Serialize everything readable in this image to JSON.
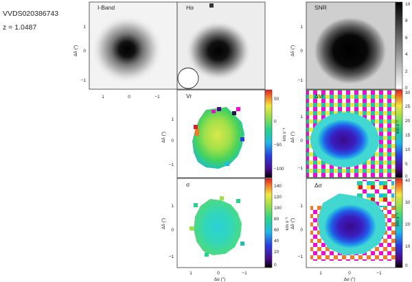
{
  "header": {
    "object_id": "VVDS020386743",
    "redshift_label": "z = 1.0487"
  },
  "panels": {
    "iband": {
      "label": "I-Band"
    },
    "halpha": {
      "label": "Hα"
    },
    "snr": {
      "label": "SNR",
      "colorbar": {
        "ticks": [
          "0",
          "2",
          "4",
          "6",
          "8",
          "10"
        ]
      }
    },
    "vr": {
      "label": "Vr",
      "colorbar": {
        "ticks": [
          "50",
          "0",
          "−50",
          "−100"
        ],
        "unit": "km s⁻¹"
      }
    },
    "dvr": {
      "label": "ΔVr",
      "colorbar": {
        "ticks": [
          "0",
          "5",
          "10",
          "15",
          "20",
          "25",
          "30"
        ],
        "unit": "km s⁻¹"
      }
    },
    "sigma": {
      "label": "σ",
      "colorbar": {
        "ticks": [
          "0",
          "20",
          "40",
          "60",
          "80",
          "100",
          "120",
          "140"
        ],
        "unit": "km s⁻¹"
      }
    },
    "dsigma": {
      "label": "Δσ",
      "colorbar": {
        "ticks": [
          "0",
          "10",
          "20",
          "30",
          "40"
        ],
        "unit": "km s⁻¹"
      }
    }
  },
  "axes": {
    "ylabel": "Δδ (″)",
    "xlabel": "Δα (″)",
    "y_ticks": [
      "1",
      "0",
      "−1"
    ],
    "x_ticks": [
      "1",
      "0",
      "−1"
    ]
  }
}
